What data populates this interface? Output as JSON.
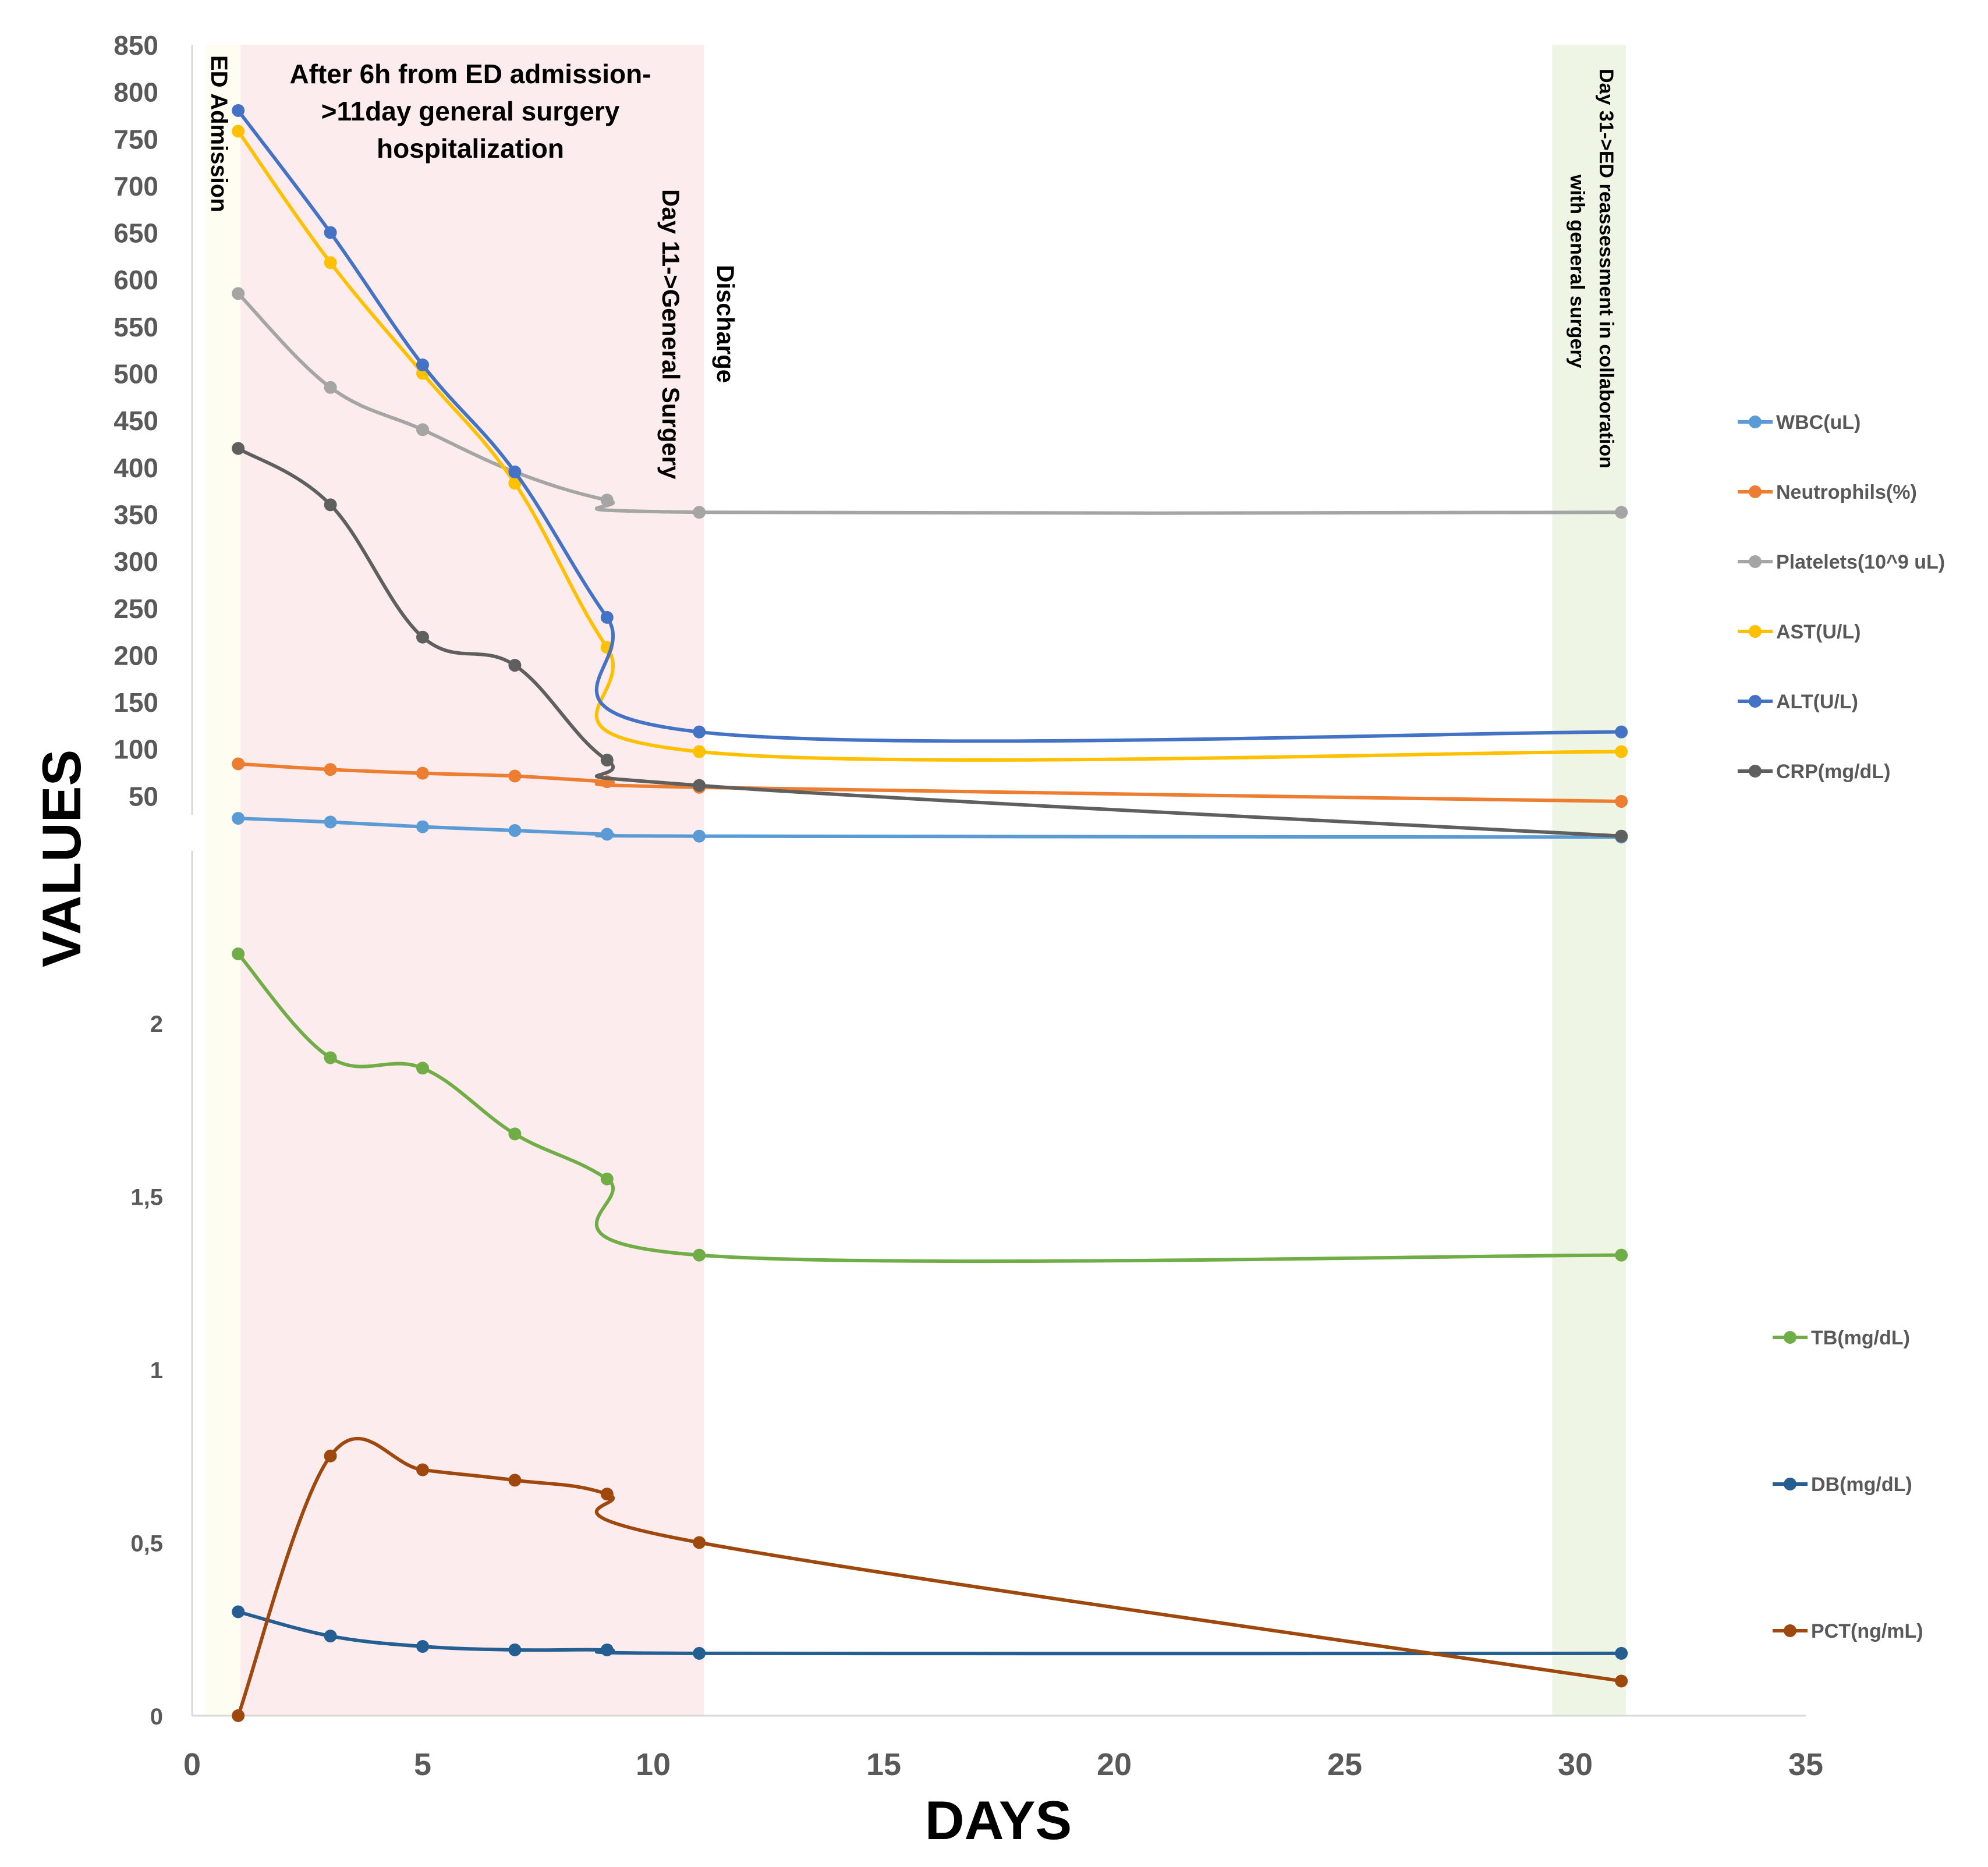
{
  "chart_data": {
    "type": "line",
    "xlabel": "DAYS",
    "ylabel": "VALUES",
    "x_ticks": [
      0,
      5,
      10,
      15,
      20,
      25,
      30,
      35
    ],
    "xlim": [
      0,
      35
    ],
    "upper_panel": {
      "ylim": [
        0,
        850
      ],
      "y_ticks": [
        "50",
        "100",
        "150",
        "200",
        "250",
        "300",
        "350",
        "400",
        "450",
        "500",
        "550",
        "600",
        "650",
        "700",
        "750",
        "800",
        "850"
      ],
      "series": [
        {
          "name": "WBC(uL)",
          "color": "#5b9bd5",
          "x": [
            1,
            3,
            5,
            7,
            9,
            11,
            31
          ],
          "y": [
            26,
            22,
            17,
            13,
            9,
            7,
            6
          ]
        },
        {
          "name": "Neutrophils(%)",
          "color": "#ed7d31",
          "x": [
            1,
            3,
            5,
            7,
            9,
            11,
            31
          ],
          "y": [
            84,
            78,
            74,
            71,
            65,
            59,
            44
          ]
        },
        {
          "name": "Platelets(10^9 uL)",
          "color": "#a5a5a5",
          "x": [
            1,
            3,
            5,
            7,
            9,
            11,
            31
          ],
          "y": [
            585,
            485,
            440,
            395,
            365,
            352,
            352
          ]
        },
        {
          "name": "AST(U/L)",
          "color": "#ffc000",
          "x": [
            1,
            3,
            5,
            7,
            9,
            11,
            31
          ],
          "y": [
            758,
            618,
            500,
            383,
            208,
            97,
            97
          ]
        },
        {
          "name": "ALT(U/L)",
          "color": "#4472c4",
          "x": [
            1,
            3,
            5,
            7,
            9,
            11,
            31
          ],
          "y": [
            780,
            650,
            509,
            395,
            240,
            118,
            118
          ]
        },
        {
          "name": "CRP(mg/dL)",
          "color": "#5f5f5f",
          "x": [
            1,
            3,
            5,
            7,
            9,
            11,
            31
          ],
          "y": [
            420,
            360,
            219,
            189,
            88,
            61,
            7
          ]
        }
      ]
    },
    "lower_panel": {
      "ylim": [
        0,
        2.5
      ],
      "y_ticks": [
        "0",
        "0,5",
        "1",
        "1,5",
        "2"
      ],
      "series": [
        {
          "name": "TB(mg/dL)",
          "color": "#70ad47",
          "x": [
            1,
            3,
            5,
            7,
            9,
            11,
            31
          ],
          "y": [
            2.2,
            1.9,
            1.87,
            1.68,
            1.55,
            1.33,
            1.33
          ]
        },
        {
          "name": "DB(mg/dL)",
          "color": "#255e91",
          "x": [
            1,
            3,
            5,
            7,
            9,
            11,
            31
          ],
          "y": [
            0.3,
            0.23,
            0.2,
            0.19,
            0.19,
            0.18,
            0.18
          ]
        },
        {
          "name": "PCT(ng/mL)",
          "color": "#9e480e",
          "x": [
            1,
            3,
            5,
            7,
            9,
            11,
            31
          ],
          "y": [
            0,
            0.75,
            0.71,
            0.68,
            0.64,
            0.5,
            0.1
          ]
        }
      ]
    },
    "shaded_regions": [
      {
        "x_start": 0.3,
        "x_end": 1.05,
        "color": "#fdfdf1"
      },
      {
        "x_start": 1.05,
        "x_end": 11.1,
        "color": "#fcecee"
      },
      {
        "x_start": 29.5,
        "x_end": 31.1,
        "color": "#eef5e4"
      }
    ],
    "annotations": {
      "ed_admission": "ED Admission",
      "hospitalization": [
        "After 6h from ED admission-",
        ">11day general surgery",
        "hospitalization"
      ],
      "day11": "Day 11->General Surgery",
      "discharge": "Discharge",
      "day31": [
        "Day 31->ED reassessment in collaboration",
        "with general surgery"
      ]
    },
    "legend_placement": "right"
  }
}
